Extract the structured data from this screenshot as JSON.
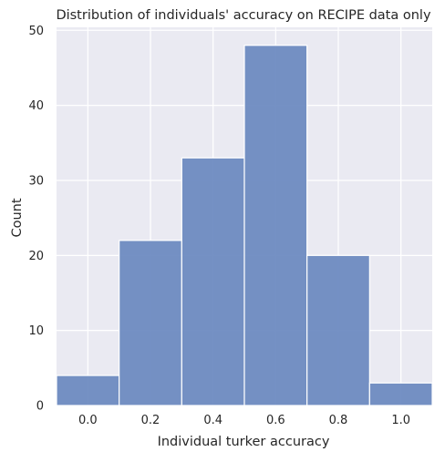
{
  "chart_data": {
    "type": "bar",
    "title": "Distribution of individuals' accuracy on RECIPE data only",
    "xlabel": "Individual turker accuracy",
    "ylabel": "Count",
    "bins": [
      {
        "x0": -0.1,
        "x1": 0.1,
        "count": 4
      },
      {
        "x0": 0.1,
        "x1": 0.3,
        "count": 22
      },
      {
        "x0": 0.3,
        "x1": 0.5,
        "count": 33
      },
      {
        "x0": 0.5,
        "x1": 0.7,
        "count": 48
      },
      {
        "x0": 0.7,
        "x1": 0.9,
        "count": 20
      },
      {
        "x0": 0.9,
        "x1": 1.1,
        "count": 3
      }
    ],
    "xlim": [
      -0.1,
      1.1
    ],
    "ylim": [
      0,
      50.4
    ],
    "x_ticks": [
      0.0,
      0.2,
      0.4,
      0.6,
      0.8,
      1.0
    ],
    "x_tick_labels": [
      "0.0",
      "0.2",
      "0.4",
      "0.6",
      "0.8",
      "1.0"
    ],
    "y_ticks": [
      0,
      10,
      20,
      30,
      40,
      50
    ],
    "y_tick_labels": [
      "0",
      "10",
      "20",
      "30",
      "40",
      "50"
    ],
    "grid": true,
    "colors": {
      "background": "#EAEAF2",
      "grid": "#FFFFFF",
      "bar_fill": "#6A89C0",
      "bar_edge": "#FFFFFF"
    }
  }
}
